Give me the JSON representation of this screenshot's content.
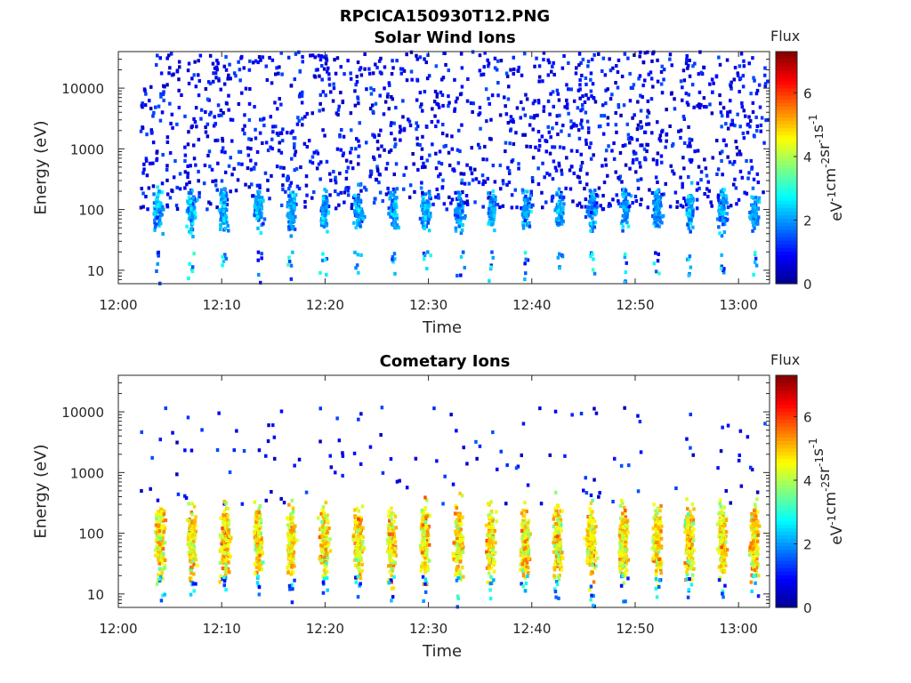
{
  "figure_title": "RPCICA150930T12.PNG",
  "colors": {
    "colormap": [
      "#00008f",
      "#0000ff",
      "#0080ff",
      "#00ffff",
      "#80ff80",
      "#ffff00",
      "#ff8000",
      "#ff0000",
      "#800000"
    ]
  },
  "chart_data": [
    {
      "type": "heatmap",
      "title": "Solar Wind Ions",
      "xlabel": "Time",
      "ylabel": "Energy (eV)",
      "x_tick_labels": [
        "12:00",
        "12:10",
        "12:20",
        "12:30",
        "12:40",
        "12:50",
        "13:00"
      ],
      "x_ticks_minutes": [
        0,
        10,
        20,
        30,
        40,
        50,
        60
      ],
      "xlim_minutes": [
        0,
        63
      ],
      "y_scale": "log",
      "y_tick_labels": [
        "10",
        "100",
        "1000",
        "10000"
      ],
      "y_ticks": [
        10,
        100,
        1000,
        10000
      ],
      "ylim": [
        6,
        40000
      ],
      "colorbar": {
        "title": "Flux",
        "label": "eV-1cm-2sr-1s-1",
        "ticks": [
          "0",
          "2",
          "4",
          "6"
        ],
        "range": [
          0,
          7.3
        ]
      },
      "burst_centers_minutes": [
        3.7,
        6.9,
        10.1,
        13.4,
        16.6,
        19.8,
        23.1,
        26.5,
        29.6,
        32.9,
        36.0,
        39.3,
        42.6,
        45.7,
        48.9,
        52.0,
        55.2,
        58.3,
        61.4
      ],
      "burst_energy_band_eV": [
        40,
        250
      ],
      "burst_flux_typical": [
        0.5,
        3.0
      ],
      "background_flux_typical": [
        0.3,
        1.5
      ],
      "background_energy_band_eV": [
        100,
        40000
      ]
    },
    {
      "type": "heatmap",
      "title": "Cometary Ions",
      "xlabel": "Time",
      "ylabel": "Energy (eV)",
      "x_tick_labels": [
        "12:00",
        "12:10",
        "12:20",
        "12:30",
        "12:40",
        "12:50",
        "13:00"
      ],
      "x_ticks_minutes": [
        0,
        10,
        20,
        30,
        40,
        50,
        60
      ],
      "xlim_minutes": [
        0,
        63
      ],
      "y_scale": "log",
      "y_tick_labels": [
        "10",
        "100",
        "1000",
        "10000"
      ],
      "y_ticks": [
        10,
        100,
        1000,
        10000
      ],
      "ylim": [
        6,
        40000
      ],
      "colorbar": {
        "title": "Flux",
        "label": "eV-1cm-2sr-1s-1",
        "ticks": [
          "0",
          "2",
          "4",
          "6"
        ],
        "range": [
          0,
          7.3
        ]
      },
      "burst_centers_minutes": [
        3.9,
        7.0,
        10.2,
        13.4,
        16.6,
        19.8,
        23.1,
        26.3,
        29.5,
        32.8,
        35.9,
        39.2,
        42.4,
        45.6,
        48.7,
        52.0,
        55.1,
        58.3,
        61.4
      ],
      "burst_energy_band_eV": [
        15,
        350
      ],
      "burst_flux_typical": [
        2.5,
        6.0
      ],
      "background_flux_typical": [
        0.3,
        1.5
      ],
      "background_energy_band_eV": [
        300,
        12000
      ]
    }
  ]
}
